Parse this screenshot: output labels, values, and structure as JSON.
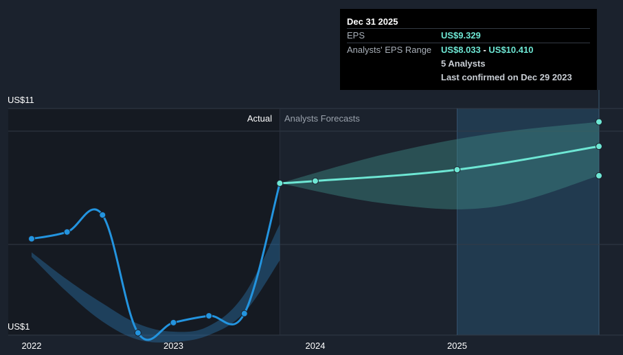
{
  "chart_data": {
    "type": "line",
    "y_axis_labels": [
      "US$11",
      "US$1"
    ],
    "ylim": [
      1,
      11
    ],
    "x_ticks": [
      {
        "label": "2022",
        "x": 2022.0
      },
      {
        "label": "2023",
        "x": 2023.0
      },
      {
        "label": "2024",
        "x": 2024.0
      },
      {
        "label": "2025",
        "x": 2025.0
      }
    ],
    "sections": {
      "actual_label": "Actual",
      "forecast_label": "Analysts Forecasts",
      "split_x": 2023.75
    },
    "series": [
      {
        "role": "actual",
        "color": "#2394df",
        "points": [
          {
            "x": 2022.0,
            "y": 5.25
          },
          {
            "x": 2022.25,
            "y": 5.55
          },
          {
            "x": 2022.5,
            "y": 6.3
          },
          {
            "x": 2022.75,
            "y": 1.1
          },
          {
            "x": 2023.0,
            "y": 1.55
          },
          {
            "x": 2023.25,
            "y": 1.85
          },
          {
            "x": 2023.5,
            "y": 1.95
          },
          {
            "x": 2023.75,
            "y": 7.7
          }
        ],
        "band": {
          "upper": [
            {
              "x": 2022.0,
              "y": 4.65
            },
            {
              "x": 2022.25,
              "y": 3.45
            },
            {
              "x": 2022.5,
              "y": 2.4
            },
            {
              "x": 2022.75,
              "y": 1.5
            },
            {
              "x": 2023.0,
              "y": 1.15
            },
            {
              "x": 2023.25,
              "y": 1.4
            },
            {
              "x": 2023.5,
              "y": 2.8
            },
            {
              "x": 2023.75,
              "y": 5.9
            }
          ],
          "lower": [
            {
              "x": 2022.0,
              "y": 4.45
            },
            {
              "x": 2022.25,
              "y": 2.9
            },
            {
              "x": 2022.5,
              "y": 1.6
            },
            {
              "x": 2022.75,
              "y": 0.8
            },
            {
              "x": 2023.0,
              "y": 0.7
            },
            {
              "x": 2023.25,
              "y": 1.0
            },
            {
              "x": 2023.5,
              "y": 2.0
            },
            {
              "x": 2023.75,
              "y": 4.3
            }
          ]
        }
      },
      {
        "role": "forecast",
        "color": "#6ee7d4",
        "points": [
          {
            "x": 2023.75,
            "y": 7.7
          },
          {
            "x": 2024.0,
            "y": 7.8
          },
          {
            "x": 2025.0,
            "y": 8.3
          },
          {
            "x": 2026.0,
            "y": 9.329
          }
        ],
        "range": {
          "high": [
            {
              "x": 2023.75,
              "y": 7.7
            },
            {
              "x": 2024.5,
              "y": 9.0
            },
            {
              "x": 2025.25,
              "y": 9.9
            },
            {
              "x": 2026.0,
              "y": 10.41
            }
          ],
          "low": [
            {
              "x": 2023.75,
              "y": 7.7
            },
            {
              "x": 2024.5,
              "y": 6.8
            },
            {
              "x": 2025.25,
              "y": 6.65
            },
            {
              "x": 2026.0,
              "y": 8.033
            }
          ]
        }
      }
    ],
    "highlight_from_x": 2025.0,
    "tooltip": {
      "date": "Dec 31 2025",
      "eps_label": "EPS",
      "eps_value": "US$9.329",
      "range_label": "Analysts' EPS Range",
      "range_low": "US$8.033",
      "range_sep": " - ",
      "range_high": "US$10.410",
      "analysts": "5 Analysts",
      "confirmed": "Last confirmed on Dec 29 2023"
    }
  }
}
